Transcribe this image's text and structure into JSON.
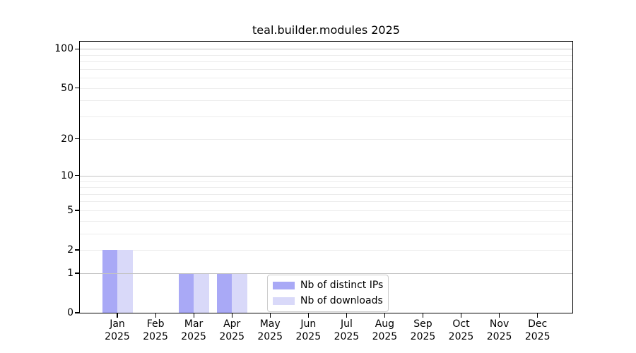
{
  "page": {
    "background": "#ffffff"
  },
  "chart_data": {
    "type": "bar",
    "title": "teal.builder.modules 2025",
    "xlabel": "",
    "ylabel": "",
    "categories": [
      {
        "month": "Jan",
        "year": "2025"
      },
      {
        "month": "Feb",
        "year": "2025"
      },
      {
        "month": "Mar",
        "year": "2025"
      },
      {
        "month": "Apr",
        "year": "2025"
      },
      {
        "month": "May",
        "year": "2025"
      },
      {
        "month": "Jun",
        "year": "2025"
      },
      {
        "month": "Jul",
        "year": "2025"
      },
      {
        "month": "Aug",
        "year": "2025"
      },
      {
        "month": "Sep",
        "year": "2025"
      },
      {
        "month": "Oct",
        "year": "2025"
      },
      {
        "month": "Nov",
        "year": "2025"
      },
      {
        "month": "Dec",
        "year": "2025"
      }
    ],
    "series": [
      {
        "name": "Nb of distinct IPs",
        "color": "#a9a9f6",
        "values": [
          2,
          0,
          1,
          1,
          0,
          0,
          0,
          0,
          0,
          0,
          0,
          0
        ]
      },
      {
        "name": "Nb of downloads",
        "color": "#d9d9f9",
        "values": [
          2,
          0,
          1,
          1,
          0,
          0,
          0,
          0,
          0,
          0,
          0,
          0
        ]
      }
    ],
    "y_scale": "log10(1+x)",
    "y_major_ticks": [
      0,
      1,
      2,
      5,
      10,
      20,
      50,
      100
    ],
    "y_decade_gridlines": [
      1,
      10,
      100
    ],
    "y_light_gridlines": [
      2,
      3,
      4,
      5,
      6,
      7,
      8,
      9,
      20,
      30,
      40,
      50,
      60,
      70,
      80,
      90
    ],
    "ylim": [
      0,
      114
    ],
    "grid": "on",
    "legend_position": "inside-bottom-center",
    "colors": {
      "decade_grid": "#c3c3c3",
      "minor_grid": "#ececec",
      "axis": "#000000",
      "legend_border": "#cccccc",
      "background": "#ffffff"
    }
  }
}
